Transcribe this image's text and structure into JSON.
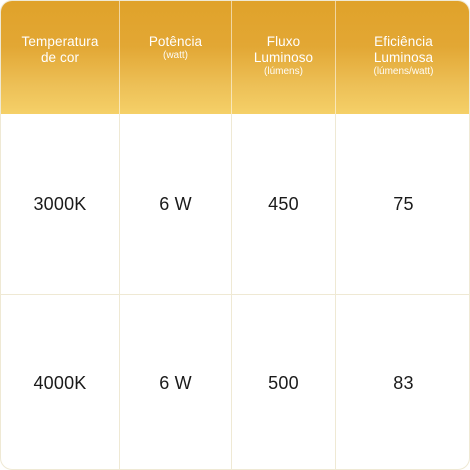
{
  "table": {
    "headers": [
      {
        "title": "Temperatura\nde cor",
        "unit": ""
      },
      {
        "title": "Potência",
        "unit": "(watt)"
      },
      {
        "title": "Fluxo\nLuminoso",
        "unit": "(lúmens)"
      },
      {
        "title": "Eficiência\nLuminosa",
        "unit": "(lúmens/watt)"
      }
    ],
    "rows": [
      [
        "3000K",
        "6 W",
        "450",
        "75"
      ],
      [
        "4000K",
        "6 W",
        "500",
        "83"
      ]
    ],
    "colors": {
      "header_gradient_top": "#e0a22a",
      "header_gradient_bottom": "#f5d068",
      "grid_line": "#efe9d4",
      "text": "#1a1a1a"
    }
  }
}
